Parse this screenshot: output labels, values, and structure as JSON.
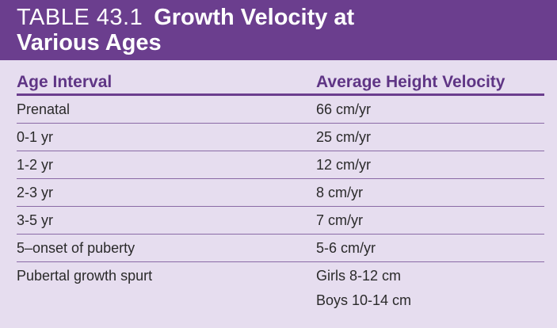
{
  "table": {
    "number": "TABLE 43.1",
    "title_line1": "Growth Velocity at",
    "title_line2": "Various Ages",
    "columns": {
      "col1": "Age Interval",
      "col2": "Average Height Velocity"
    },
    "rows": [
      {
        "age": "Prenatal",
        "velocity": "66 cm/yr"
      },
      {
        "age": "0-1 yr",
        "velocity": "25 cm/yr"
      },
      {
        "age": "1-2 yr",
        "velocity": "12 cm/yr"
      },
      {
        "age": "2-3 yr",
        "velocity": "8 cm/yr"
      },
      {
        "age": "3-5 yr",
        "velocity": "7 cm/yr"
      },
      {
        "age": "5–onset of puberty",
        "velocity": "5-6 cm/yr"
      },
      {
        "age": "Pubertal growth spurt",
        "velocity_line1": "Girls 8-12 cm",
        "velocity_line2": "Boys 10-14 cm"
      }
    ]
  },
  "colors": {
    "header_bg": "#6b3e8e",
    "body_bg": "#e6ddef",
    "header_text": "#5f3585"
  }
}
